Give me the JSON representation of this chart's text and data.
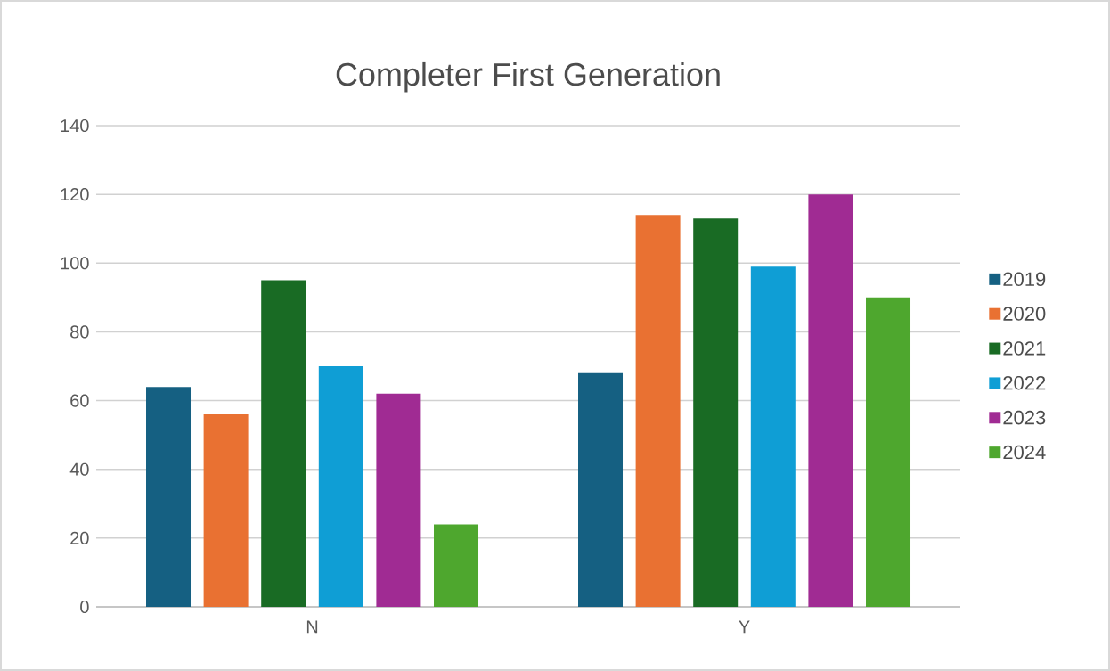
{
  "chart_data": {
    "type": "bar",
    "title": "Completer First Generation",
    "categories": [
      "N",
      "Y"
    ],
    "series": [
      {
        "name": "2019",
        "color": "#156082",
        "values": [
          64,
          68
        ]
      },
      {
        "name": "2020",
        "color": "#e97132",
        "values": [
          56,
          114
        ]
      },
      {
        "name": "2021",
        "color": "#196b24",
        "values": [
          95,
          113
        ]
      },
      {
        "name": "2022",
        "color": "#0f9ed5",
        "values": [
          70,
          99
        ]
      },
      {
        "name": "2023",
        "color": "#a02b93",
        "values": [
          62,
          120
        ]
      },
      {
        "name": "2024",
        "color": "#4ea72e",
        "values": [
          24,
          90
        ]
      }
    ],
    "ylim": [
      0,
      140
    ],
    "yticks": [
      0,
      20,
      40,
      60,
      80,
      100,
      120,
      140
    ],
    "grid": "y",
    "legend": "right"
  }
}
